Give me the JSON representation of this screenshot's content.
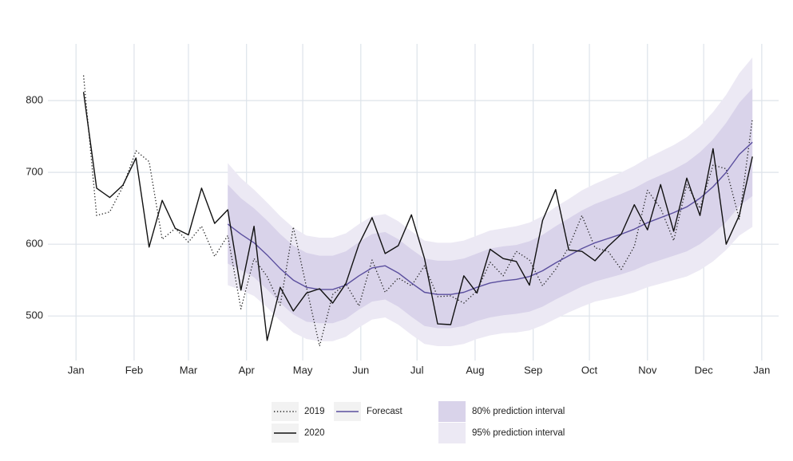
{
  "chart_data": {
    "type": "line",
    "x": [
      4,
      11,
      18,
      25,
      32,
      39,
      46,
      53,
      60,
      67,
      74,
      81,
      88,
      95,
      102,
      109,
      116,
      123,
      130,
      137,
      144,
      151,
      158,
      165,
      172,
      179,
      186,
      193,
      200,
      207,
      214,
      221,
      228,
      235,
      242,
      249,
      256,
      263,
      270,
      277,
      284,
      291,
      298,
      305,
      312,
      319,
      326,
      333,
      340,
      347,
      354,
      361
    ],
    "xlim": [
      -15,
      375
    ],
    "xticks": [
      {
        "value": 0,
        "label": "Jan"
      },
      {
        "value": 31,
        "label": "Feb"
      },
      {
        "value": 60,
        "label": "Mar"
      },
      {
        "value": 91,
        "label": "Apr"
      },
      {
        "value": 121,
        "label": "May"
      },
      {
        "value": 152,
        "label": "Jun"
      },
      {
        "value": 182,
        "label": "Jul"
      },
      {
        "value": 213,
        "label": "Aug"
      },
      {
        "value": 244,
        "label": "Sep"
      },
      {
        "value": 274,
        "label": "Oct"
      },
      {
        "value": 305,
        "label": "Nov"
      },
      {
        "value": 335,
        "label": "Dec"
      },
      {
        "value": 366,
        "label": "Jan"
      }
    ],
    "ylim": [
      438,
      879
    ],
    "yticks": [
      500,
      600,
      700,
      800
    ],
    "grid": true,
    "legend": "bottom",
    "series": [
      {
        "name": "2019",
        "color": "#222222",
        "linestyle": "dotted",
        "values": [
          835,
          640,
          645,
          680,
          730,
          715,
          607,
          622,
          603,
          625,
          583,
          612,
          510,
          580,
          555,
          515,
          624,
          540,
          458,
          530,
          545,
          514,
          578,
          533,
          553,
          542,
          570,
          527,
          528,
          518,
          535,
          575,
          556,
          590,
          578,
          542,
          565,
          596,
          640,
          595,
          590,
          565,
          597,
          675,
          650,
          605,
          683,
          650,
          710,
          705,
          635,
          775
        ]
      },
      {
        "name": "Forecast",
        "color": "#5b4f9e",
        "linestyle": "solid",
        "values": [
          null,
          null,
          null,
          null,
          null,
          null,
          null,
          null,
          null,
          null,
          null,
          628,
          614,
          602,
          585,
          566,
          550,
          540,
          537,
          537,
          543,
          556,
          567,
          570,
          560,
          546,
          533,
          530,
          530,
          533,
          540,
          546,
          549,
          551,
          555,
          563,
          574,
          584,
          594,
          602,
          608,
          614,
          621,
          630,
          637,
          644,
          652,
          664,
          680,
          700,
          725,
          742
        ]
      },
      {
        "name": "2020",
        "color": "#111111",
        "linestyle": "solid",
        "values": [
          812,
          678,
          665,
          682,
          720,
          596,
          661,
          622,
          613,
          678,
          629,
          648,
          536,
          625,
          466,
          540,
          507,
          532,
          538,
          518,
          545,
          600,
          637,
          587,
          598,
          641,
          580,
          489,
          488,
          556,
          532,
          593,
          580,
          576,
          543,
          633,
          676,
          592,
          590,
          577,
          597,
          614,
          655,
          620,
          683,
          618,
          692,
          640,
          733,
          600,
          640,
          722
        ]
      }
    ],
    "intervals": [
      {
        "name": "80% prediction interval",
        "color": "#d9d3ea",
        "lower": [
          null,
          null,
          null,
          null,
          null,
          null,
          null,
          null,
          null,
          null,
          null,
          573,
          564,
          554,
          537,
          518,
          502,
          492,
          490,
          490,
          496,
          509,
          520,
          523,
          513,
          499,
          486,
          483,
          483,
          486,
          493,
          498,
          501,
          503,
          506,
          513,
          523,
          532,
          541,
          548,
          553,
          558,
          564,
          572,
          578,
          584,
          590,
          600,
          614,
          631,
          653,
          667
        ],
        "upper": [
          null,
          null,
          null,
          null,
          null,
          null,
          null,
          null,
          null,
          null,
          null,
          683,
          664,
          650,
          633,
          614,
          598,
          588,
          584,
          584,
          590,
          603,
          614,
          617,
          607,
          593,
          580,
          577,
          577,
          580,
          587,
          594,
          597,
          599,
          604,
          613,
          625,
          636,
          647,
          656,
          663,
          670,
          678,
          688,
          696,
          704,
          714,
          728,
          746,
          769,
          797,
          817
        ]
      },
      {
        "name": "95% prediction interval",
        "color": "#ece9f4",
        "lower": [
          null,
          null,
          null,
          null,
          null,
          null,
          null,
          null,
          null,
          null,
          null,
          543,
          536,
          528,
          512,
          493,
          477,
          468,
          465,
          465,
          471,
          484,
          495,
          498,
          488,
          474,
          461,
          458,
          458,
          461,
          468,
          473,
          476,
          477,
          480,
          487,
          496,
          505,
          513,
          520,
          524,
          528,
          533,
          540,
          545,
          550,
          555,
          564,
          576,
          592,
          612,
          624
        ],
        "upper": [
          null,
          null,
          null,
          null,
          null,
          null,
          null,
          null,
          null,
          null,
          null,
          713,
          692,
          676,
          658,
          639,
          623,
          612,
          609,
          609,
          615,
          628,
          639,
          642,
          632,
          618,
          605,
          602,
          602,
          605,
          612,
          619,
          622,
          625,
          630,
          639,
          652,
          663,
          675,
          684,
          692,
          700,
          709,
          720,
          729,
          738,
          749,
          764,
          784,
          808,
          838,
          860
        ]
      }
    ]
  }
}
